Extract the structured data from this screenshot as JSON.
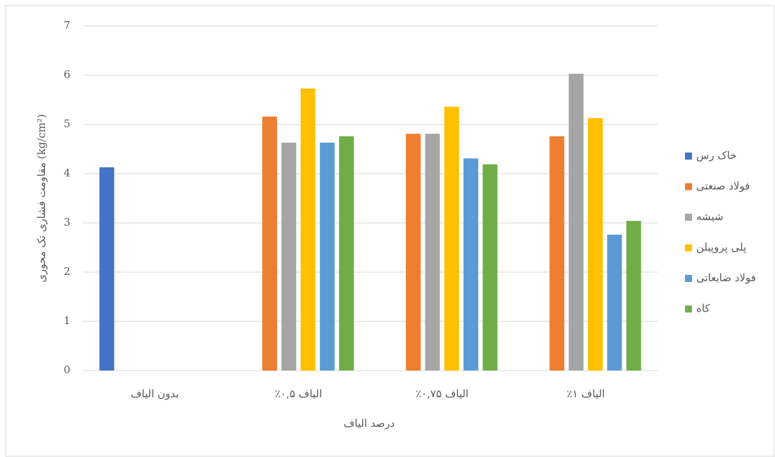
{
  "chart_data": {
    "type": "bar",
    "x_label": "درصد الیاف",
    "y_label": "مقاومت فشاری تک محوری (kg/cm²)",
    "categories": [
      "بدون الیاف",
      "٪۰,۵ الیاف",
      "٪۰,۷۵ الیاف",
      "٪۱ الیاف"
    ],
    "series": [
      {
        "name": "خاک رس",
        "color": "#4472c4",
        "values": [
          4.13,
          null,
          null,
          null
        ]
      },
      {
        "name": "فولاد صنعتی",
        "color": "#ed7d31",
        "values": [
          null,
          5.16,
          4.81,
          4.76
        ]
      },
      {
        "name": "شیشه",
        "color": "#a5a5a5",
        "values": [
          null,
          4.63,
          4.81,
          6.03
        ]
      },
      {
        "name": "پلی پروپیلن",
        "color": "#ffc000",
        "values": [
          null,
          5.73,
          5.36,
          5.13
        ]
      },
      {
        "name": "فولاد ضایعاتی",
        "color": "#5b9bd5",
        "values": [
          null,
          4.63,
          4.31,
          2.76
        ]
      },
      {
        "name": "کاه",
        "color": "#70ad47",
        "values": [
          null,
          4.76,
          4.19,
          3.04
        ]
      }
    ],
    "ylim": [
      0,
      7
    ],
    "yticks": [
      0,
      1,
      2,
      3,
      4,
      5,
      6,
      7
    ],
    "grid": true,
    "legend": "right"
  }
}
